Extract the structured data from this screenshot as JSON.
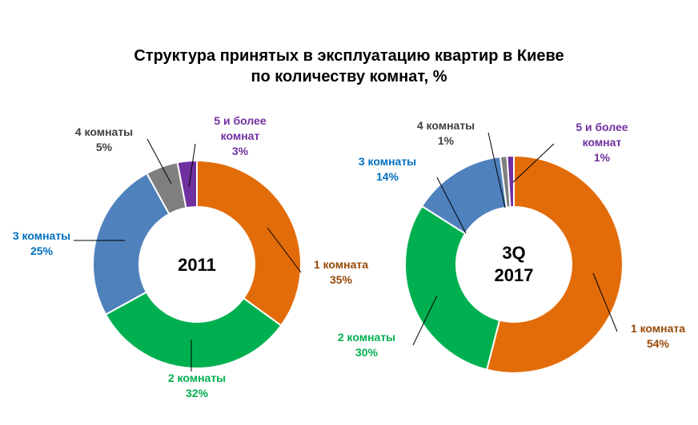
{
  "chart_data": {
    "type": "pie",
    "variant": "donut",
    "title": [
      "Структура принятых в эксплуатацию квартир в Киеве",
      "по количеству комнат, %"
    ],
    "legend": "none",
    "charts": [
      {
        "center_label": [
          "2011"
        ],
        "slices": [
          {
            "label": "1 комната",
            "pct_text": "35%",
            "value": 35,
            "color": "#E36C0A",
            "label_color": "#974806"
          },
          {
            "label": "2 комнаты",
            "pct_text": "32%",
            "value": 32,
            "color": "#00B050",
            "label_color": "#00B050"
          },
          {
            "label": "3 комнаты",
            "pct_text": "25%",
            "value": 25,
            "color": "#4F81BD",
            "label_color": "#0070C0"
          },
          {
            "label": "4 комнаты",
            "pct_text": "5%",
            "value": 5,
            "color": "#7F7F7F",
            "label_color": "#404040"
          },
          {
            "label": [
              "5 и более",
              "комнат"
            ],
            "pct_text": "3%",
            "value": 3,
            "color": "#7030A0",
            "label_color": "#7030A0"
          }
        ]
      },
      {
        "center_label": [
          "3Q",
          "2017"
        ],
        "slices": [
          {
            "label": "1 комната",
            "pct_text": "54%",
            "value": 54,
            "color": "#E36C0A",
            "label_color": "#974806"
          },
          {
            "label": "2 комнаты",
            "pct_text": "30%",
            "value": 30,
            "color": "#00B050",
            "label_color": "#00B050"
          },
          {
            "label": "3 комнаты",
            "pct_text": "14%",
            "value": 14,
            "color": "#4F81BD",
            "label_color": "#0070C0"
          },
          {
            "label": "4 комнаты",
            "pct_text": "1%",
            "value": 1,
            "color": "#7F7F7F",
            "label_color": "#404040"
          },
          {
            "label": [
              "5 и более",
              "комнат"
            ],
            "pct_text": "1%",
            "value": 1,
            "color": "#7030A0",
            "label_color": "#7030A0"
          }
        ]
      }
    ]
  }
}
